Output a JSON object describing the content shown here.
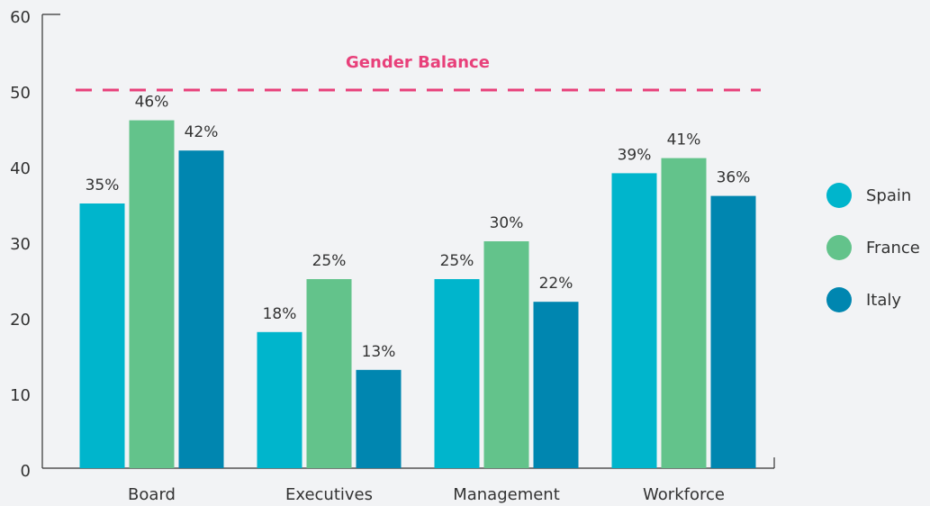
{
  "chart_data": {
    "type": "bar",
    "categories": [
      "Board",
      "Executives",
      "Management",
      "Workforce"
    ],
    "series": [
      {
        "name": "Spain",
        "color": "#00b5cc",
        "values": [
          35,
          18,
          25,
          39
        ],
        "value_labels": [
          "35%",
          "18%",
          "25%",
          "39%"
        ]
      },
      {
        "name": "France",
        "color": "#63c38b",
        "values": [
          46,
          25,
          30,
          41
        ],
        "value_labels": [
          "46%",
          "25%",
          "30%",
          "41%"
        ]
      },
      {
        "name": "Italy",
        "color": "#0086b0",
        "values": [
          42,
          13,
          22,
          36
        ],
        "value_labels": [
          "42%",
          "13%",
          "22%",
          "36%"
        ]
      }
    ],
    "ylim": [
      0,
      60
    ],
    "yticks": [
      0,
      10,
      20,
      30,
      40,
      50,
      60
    ],
    "annotation": {
      "text": "Gender Balance",
      "value": 50,
      "color": "#e8407a"
    },
    "legend": "right"
  }
}
